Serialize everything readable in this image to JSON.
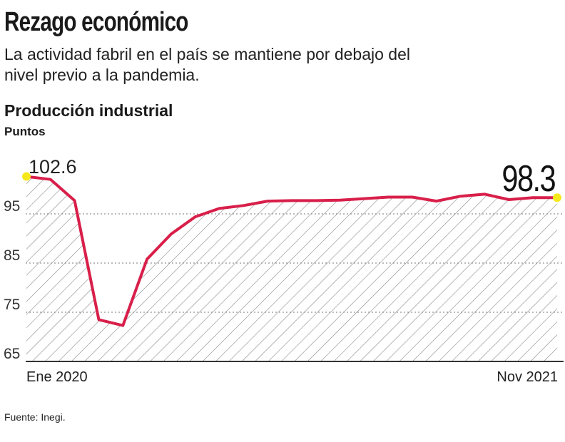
{
  "header": {
    "title": "Rezago económico",
    "subtitle": "La actividad fabril en el país se mantiene por debajo del nivel previo a la pandemia."
  },
  "footer": {
    "source": "Fuente: Inegi."
  },
  "chart_data": {
    "type": "area",
    "title": "Producción industrial",
    "ylabel": "Puntos",
    "xlabel": "",
    "ylim": [
      65,
      105
    ],
    "yticks": [
      65,
      75,
      85,
      95
    ],
    "grid": true,
    "x_start_label": "Ene 2020",
    "x_end_label": "Nov 2021",
    "first_label": "102.6",
    "last_label": "98.3",
    "line_color": "#d81f4a",
    "marker_color": "#f5e81c",
    "values": [
      102.6,
      102.0,
      97.7,
      73.5,
      72.3,
      85.8,
      90.9,
      94.4,
      96.1,
      96.7,
      97.6,
      97.7,
      97.7,
      97.8,
      98.1,
      98.4,
      98.4,
      97.6,
      98.6,
      99.0,
      97.9,
      98.3,
      98.3
    ]
  }
}
